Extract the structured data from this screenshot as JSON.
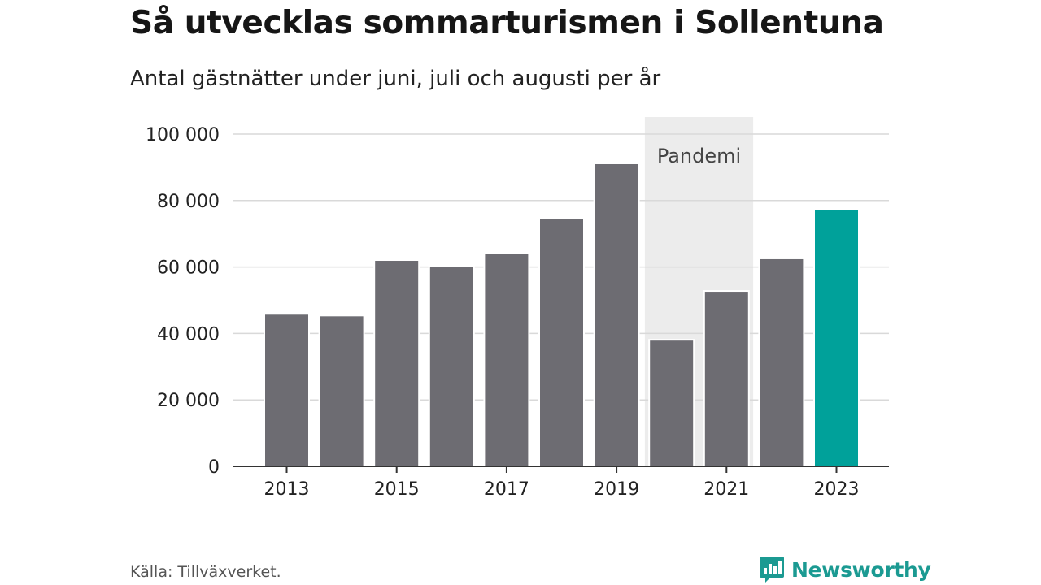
{
  "header": {
    "title": "Så utvecklas sommarturismen i Sollentuna",
    "subtitle": "Antal gästnätter under juni, juli och augusti per år"
  },
  "footer": {
    "source": "Källa: Tillväxverket.",
    "brand": "Newsworthy",
    "brand_icon": "newsworthy-logo-icon"
  },
  "colors": {
    "bar": "#6d6c72",
    "highlight": "#00a19a",
    "band": "#ececec",
    "grid": "#d9d9d9",
    "axis": "#333333",
    "brand": "#1b9a92"
  },
  "chart_data": {
    "type": "bar",
    "title": "Så utvecklas sommarturismen i Sollentuna",
    "subtitle": "Antal gästnätter under juni, juli och augusti per år",
    "categories": [
      "2013",
      "2014",
      "2015",
      "2016",
      "2017",
      "2018",
      "2019",
      "2020",
      "2021",
      "2022",
      "2023"
    ],
    "values": [
      45900,
      45400,
      62100,
      60200,
      64200,
      74800,
      91200,
      38100,
      52800,
      62600,
      77400
    ],
    "highlight_category": "2023",
    "ylim": [
      0,
      100000
    ],
    "yticks": [
      0,
      20000,
      40000,
      60000,
      80000,
      100000
    ],
    "ytick_labels": [
      "0",
      "20 000",
      "40 000",
      "60 000",
      "80 000",
      "100 000"
    ],
    "xtick_labels": [
      "2013",
      "2015",
      "2017",
      "2019",
      "2021",
      "2023"
    ],
    "annotation": {
      "label": "Pandemi",
      "from": "2020",
      "to": "2021"
    },
    "grid": true,
    "legend": "none"
  }
}
